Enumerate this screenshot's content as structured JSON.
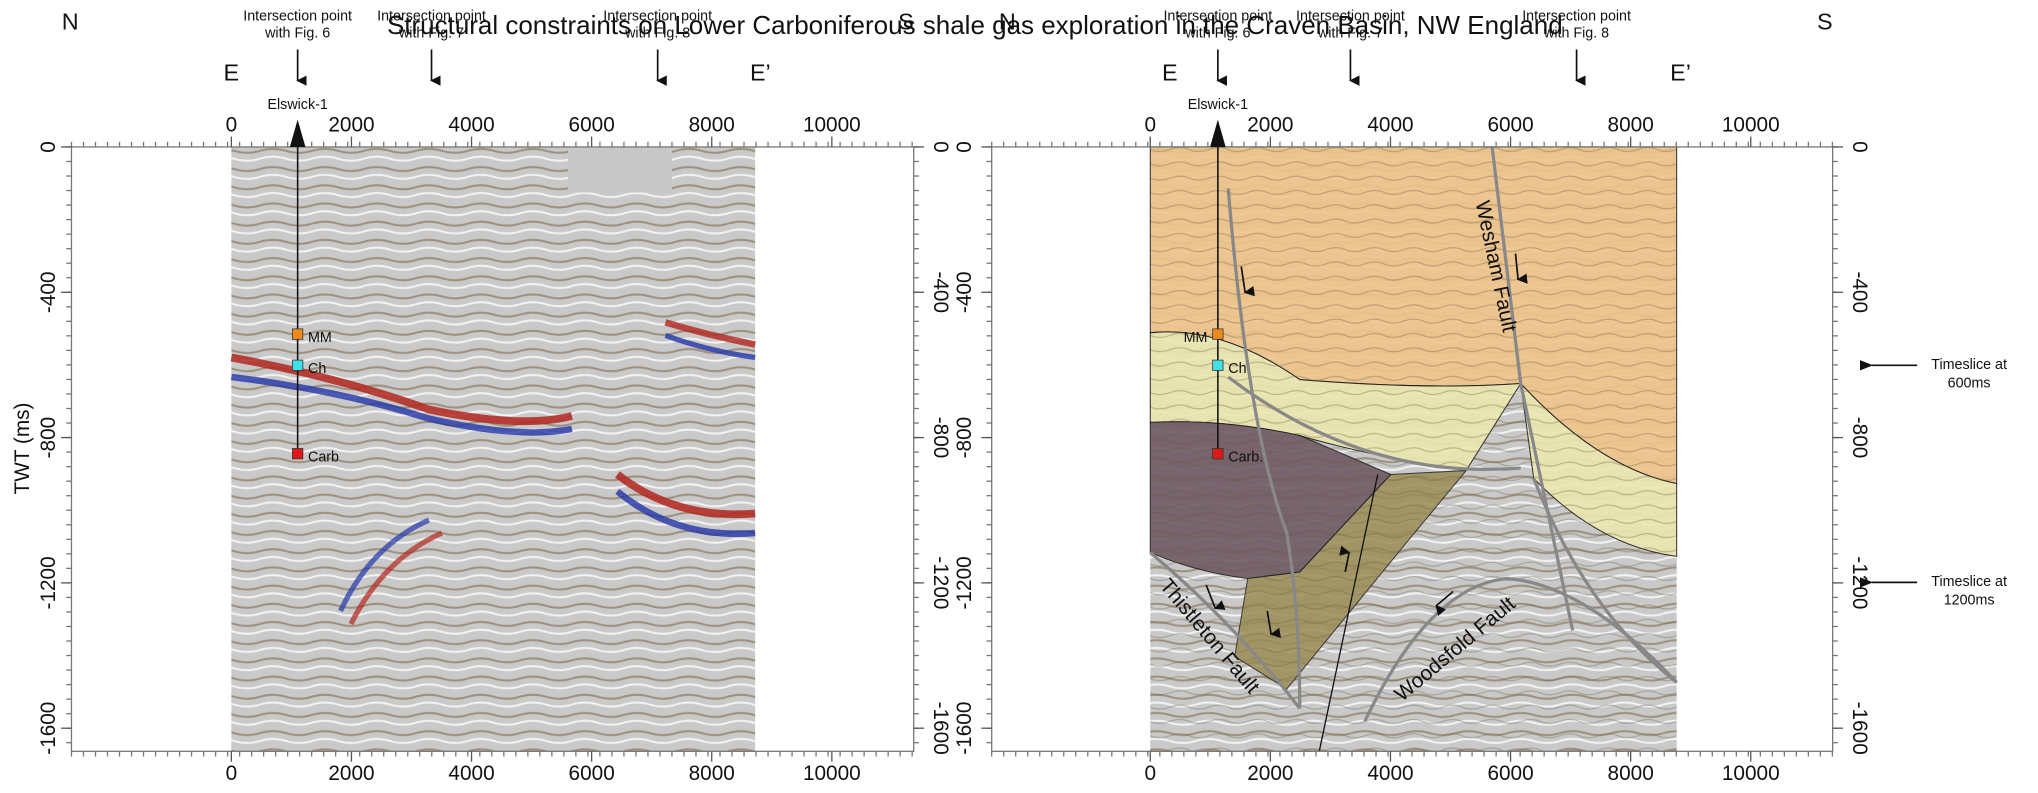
{
  "title": "Structural constraints on Lower Carboniferous shale gas exploration in the Craven Basin, NW England",
  "x_ticks": [
    0,
    2000,
    4000,
    6000,
    8000,
    10000
  ],
  "y_ticks": [
    0,
    -400,
    -800,
    -1200,
    -1600
  ],
  "panels": [
    {
      "compass": [
        "N",
        "S"
      ],
      "section": [
        "E",
        "E’"
      ],
      "intersections": [
        [
          "Intersection point",
          "with Fig. 6"
        ],
        [
          "Intersection point",
          "with Fig. 7"
        ],
        [
          "Intersection point",
          "with Fig. 8"
        ]
      ],
      "well": "Elswick-1",
      "horizons": [
        "MM",
        "Ch",
        "Carb"
      ],
      "y_axis_label": "TWT (ms)"
    },
    {
      "compass": [
        "N",
        "S"
      ],
      "section": [
        "E",
        "E’"
      ],
      "intersections": [
        [
          "Intersection point",
          "with Fig. 6"
        ],
        [
          "Intersection point",
          "with Fig. 7"
        ],
        [
          "Intersection point",
          "with Fig. 8"
        ]
      ],
      "well": "Elswick-1",
      "horizons": [
        "MM",
        "Ch",
        "Carb."
      ],
      "faults": [
        "Wesham Fault",
        "Thistleton Fault",
        "Woodsfold Fault"
      ]
    }
  ],
  "timeslices": [
    [
      "Timeslice at",
      "600ms"
    ],
    [
      "Timeslice at",
      "1200ms"
    ]
  ]
}
